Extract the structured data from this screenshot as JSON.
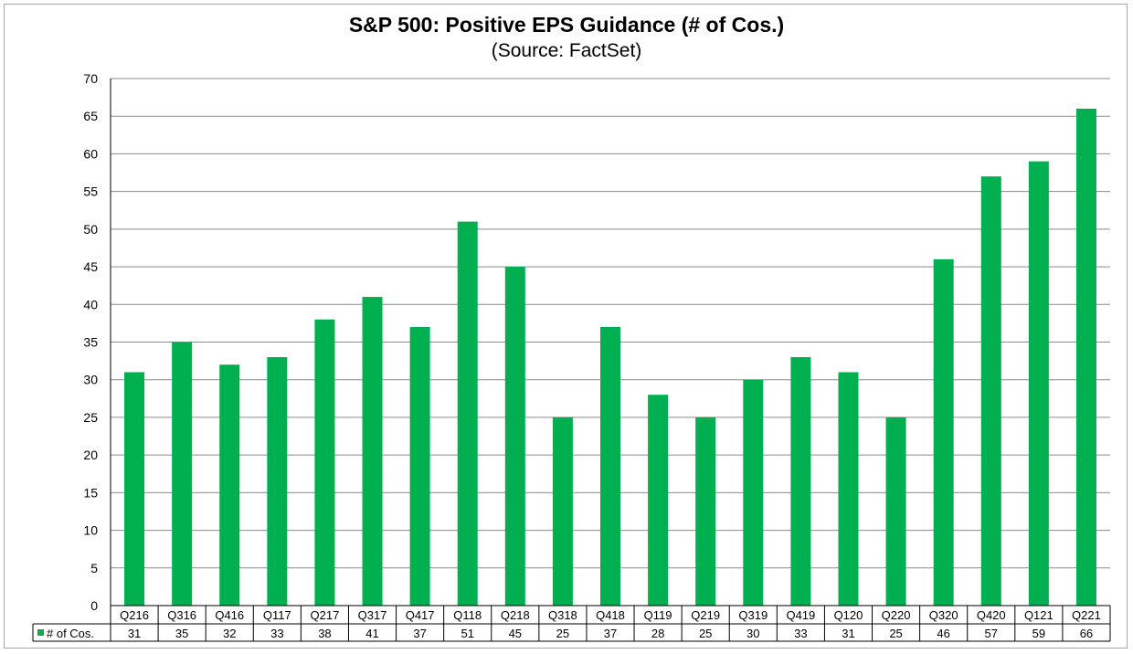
{
  "chart_data": {
    "type": "bar",
    "title": "S&P 500: Positive EPS Guidance (# of Cos.)",
    "subtitle": "(Source: FactSet)",
    "xlabel": "",
    "ylabel": "",
    "ylim": [
      0,
      70
    ],
    "yticks": [
      0,
      5,
      10,
      15,
      20,
      25,
      30,
      35,
      40,
      45,
      50,
      55,
      60,
      65,
      70
    ],
    "grid": true,
    "categories": [
      "Q216",
      "Q316",
      "Q416",
      "Q117",
      "Q217",
      "Q317",
      "Q417",
      "Q118",
      "Q218",
      "Q318",
      "Q418",
      "Q119",
      "Q219",
      "Q319",
      "Q419",
      "Q120",
      "Q220",
      "Q320",
      "Q420",
      "Q121",
      "Q221"
    ],
    "series": [
      {
        "name": "# of Cos.",
        "color": "#00b050",
        "values": [
          31,
          35,
          32,
          33,
          38,
          41,
          37,
          51,
          45,
          25,
          37,
          28,
          25,
          30,
          33,
          31,
          25,
          46,
          57,
          59,
          66
        ]
      }
    ],
    "legend_placement": "data-table-row"
  }
}
